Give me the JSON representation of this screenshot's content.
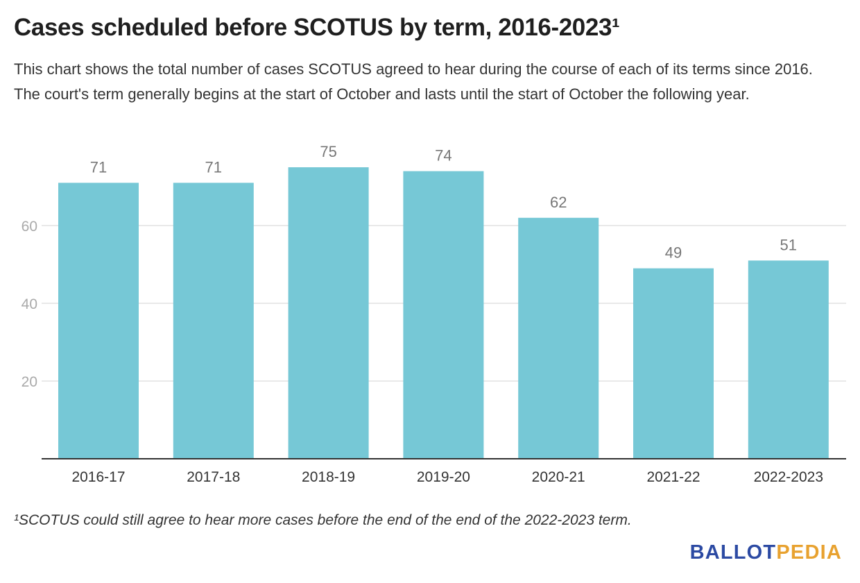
{
  "header": {
    "title": "Cases scheduled before SCOTUS by term, 2016-2023¹",
    "subtitle": "This chart shows the total number of cases SCOTUS agreed to hear during the course of each of its terms since 2016. The court's term generally begins at the start of October and lasts until the start of October the following year."
  },
  "chart_data": {
    "type": "bar",
    "categories": [
      "2016-17",
      "2017-18",
      "2018-19",
      "2019-20",
      "2020-21",
      "2021-22",
      "2022-2023"
    ],
    "values": [
      71,
      71,
      75,
      74,
      62,
      49,
      51
    ],
    "title": "Cases scheduled before SCOTUS by term, 2016-2023¹",
    "xlabel": "",
    "ylabel": "",
    "ylim": [
      0,
      80
    ],
    "yticks": [
      20,
      40,
      60
    ],
    "grid": true,
    "legend": "none",
    "bar_color": "#76c8d6",
    "data_labels": true
  },
  "footer": {
    "footnote": "¹SCOTUS could still agree to hear more cases before the end of the end of the 2022-2023 term.",
    "logo_part1": "BALLOT",
    "logo_part2": "PEDIA",
    "logo_color1": "#2c4aa3",
    "logo_color2": "#e8a230"
  }
}
